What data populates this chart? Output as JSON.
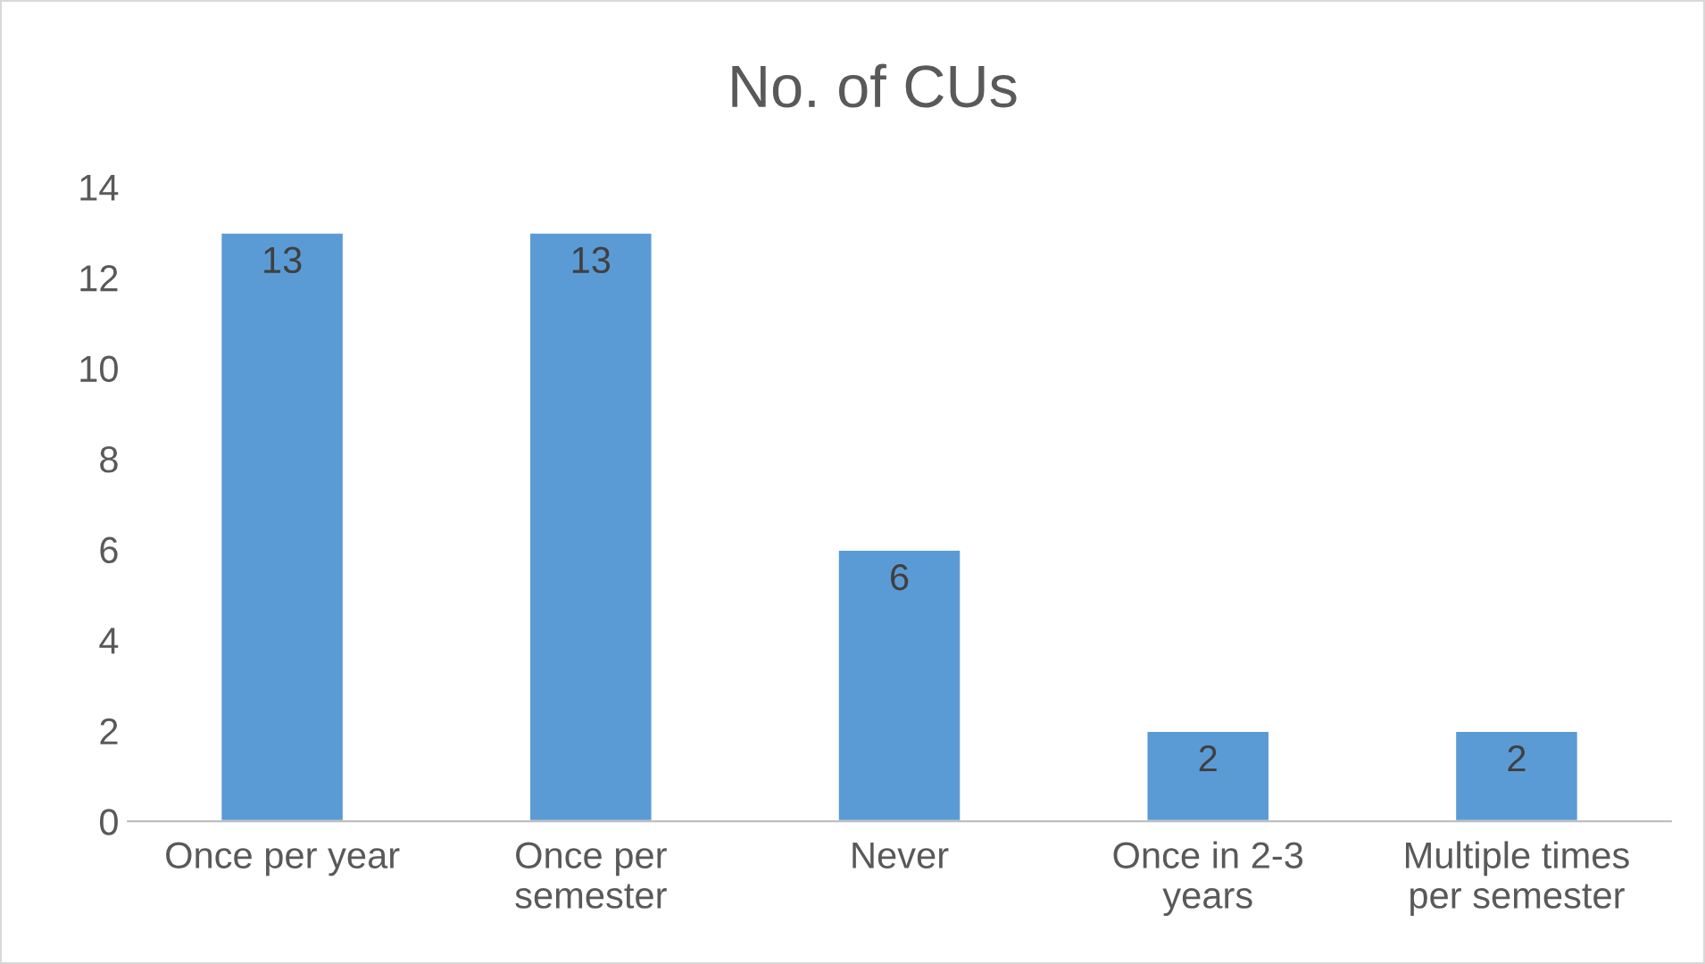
{
  "chart_data": {
    "type": "bar",
    "title": "No. of CUs",
    "categories": [
      "Once per year",
      "Once per\nsemester",
      "Never",
      "Once in 2-3\nyears",
      "Multiple times\nper semester"
    ],
    "values": [
      13,
      13,
      6,
      2,
      2
    ],
    "color": "#5b9bd5",
    "ylim": [
      0,
      14
    ],
    "yticks": [
      0,
      2,
      4,
      6,
      8,
      10,
      12,
      14
    ],
    "grid": false,
    "legend": false,
    "data_labels": true
  }
}
